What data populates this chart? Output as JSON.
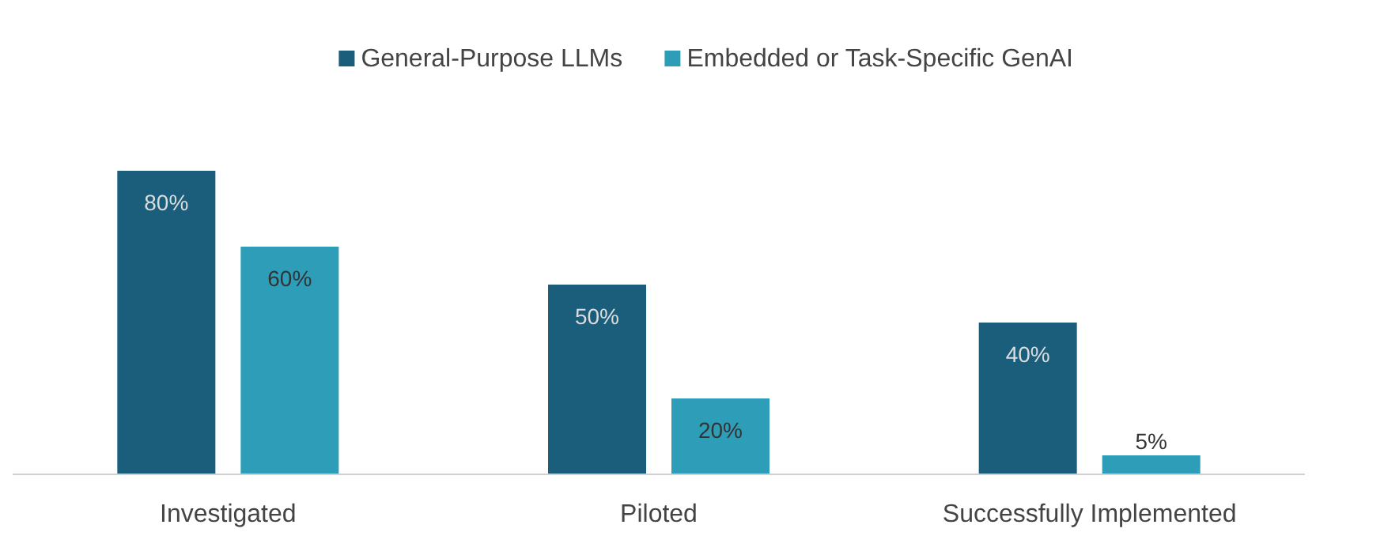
{
  "chart_data": {
    "type": "bar",
    "categories": [
      "Investigated",
      "Piloted",
      "Successfully Implemented"
    ],
    "series": [
      {
        "name": "General-Purpose LLMs",
        "color": "#1a5e7c",
        "values": [
          80,
          50,
          40
        ],
        "value_labels": [
          "80%",
          "50%",
          "40%"
        ]
      },
      {
        "name": "Embedded or Task-Specific GenAI",
        "color": "#2e9db7",
        "values": [
          60,
          20,
          5
        ],
        "value_labels": [
          "60%",
          "20%",
          "5%"
        ]
      }
    ],
    "legend": "top",
    "grid": false
  }
}
